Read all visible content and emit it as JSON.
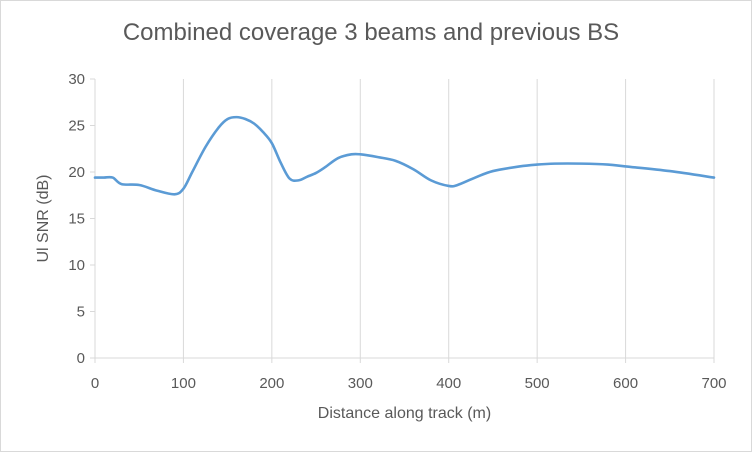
{
  "chart_data": {
    "type": "line",
    "title": "Combined coverage 3 beams and previous BS",
    "xlabel": "Distance along track (m)",
    "ylabel": "Ul SNR (dB)",
    "xlim": [
      0,
      700
    ],
    "ylim": [
      0,
      30
    ],
    "xticks": [
      0,
      100,
      200,
      300,
      400,
      500,
      600,
      700
    ],
    "yticks": [
      0,
      5,
      10,
      15,
      20,
      25,
      30
    ],
    "grid": "vertical",
    "legend": "none",
    "series": [
      {
        "color": "#5b9bd5",
        "x": [
          0,
          10,
          20,
          30,
          50,
          70,
          90,
          100,
          110,
          125,
          140,
          150,
          160,
          170,
          180,
          190,
          200,
          210,
          220,
          230,
          240,
          250,
          260,
          275,
          290,
          300,
          320,
          340,
          360,
          380,
          400,
          410,
          430,
          450,
          480,
          500,
          520,
          550,
          580,
          600,
          650,
          700
        ],
        "y": [
          19.4,
          19.4,
          19.4,
          18.7,
          18.6,
          18.0,
          17.6,
          18.2,
          20.0,
          22.7,
          24.8,
          25.7,
          25.9,
          25.7,
          25.2,
          24.3,
          23.1,
          21.0,
          19.3,
          19.1,
          19.5,
          19.9,
          20.5,
          21.5,
          21.9,
          21.9,
          21.6,
          21.2,
          20.3,
          19.1,
          18.5,
          18.6,
          19.4,
          20.1,
          20.6,
          20.8,
          20.9,
          20.9,
          20.8,
          20.6,
          20.1,
          19.4
        ]
      }
    ]
  }
}
